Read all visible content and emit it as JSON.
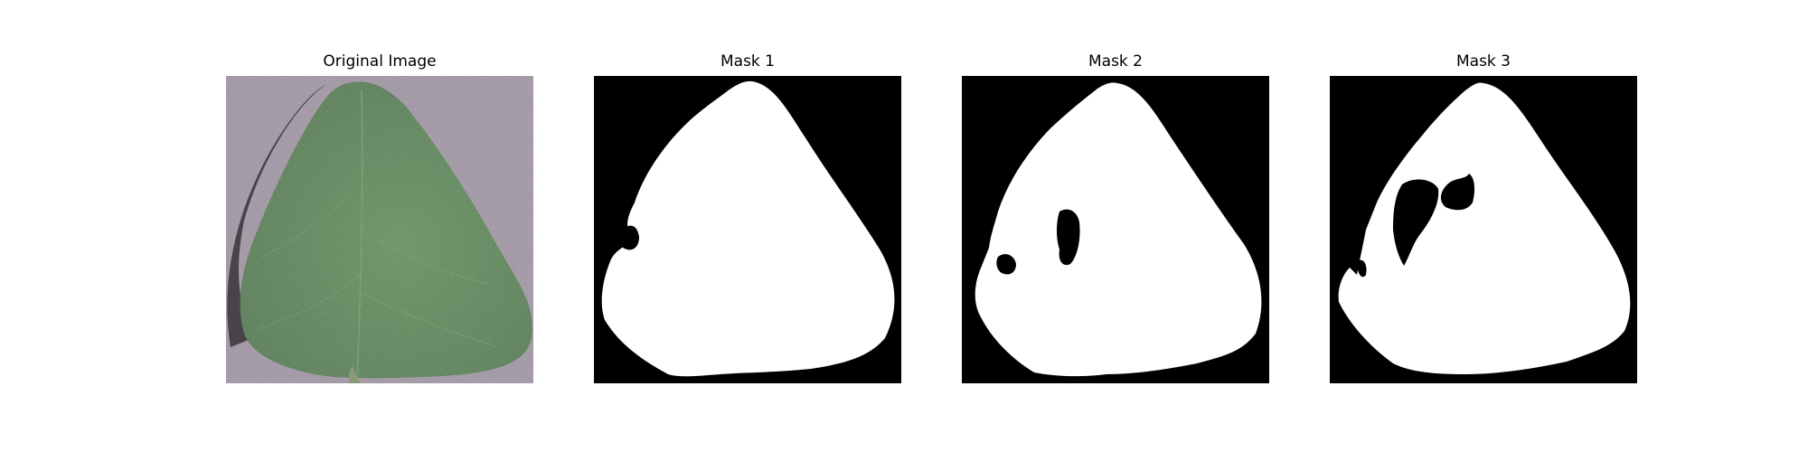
{
  "panels": [
    {
      "title": "Original Image",
      "content": "leaf-photo"
    },
    {
      "title": "Mask 1",
      "content": "binary-mask"
    },
    {
      "title": "Mask 2",
      "content": "binary-mask"
    },
    {
      "title": "Mask 3",
      "content": "binary-mask"
    }
  ],
  "colors": {
    "background": "#ffffff",
    "mask_background": "#000000",
    "mask_foreground": "#ffffff",
    "leaf_green": "#3f6f3a",
    "surface_gray": "#a49aa6"
  }
}
